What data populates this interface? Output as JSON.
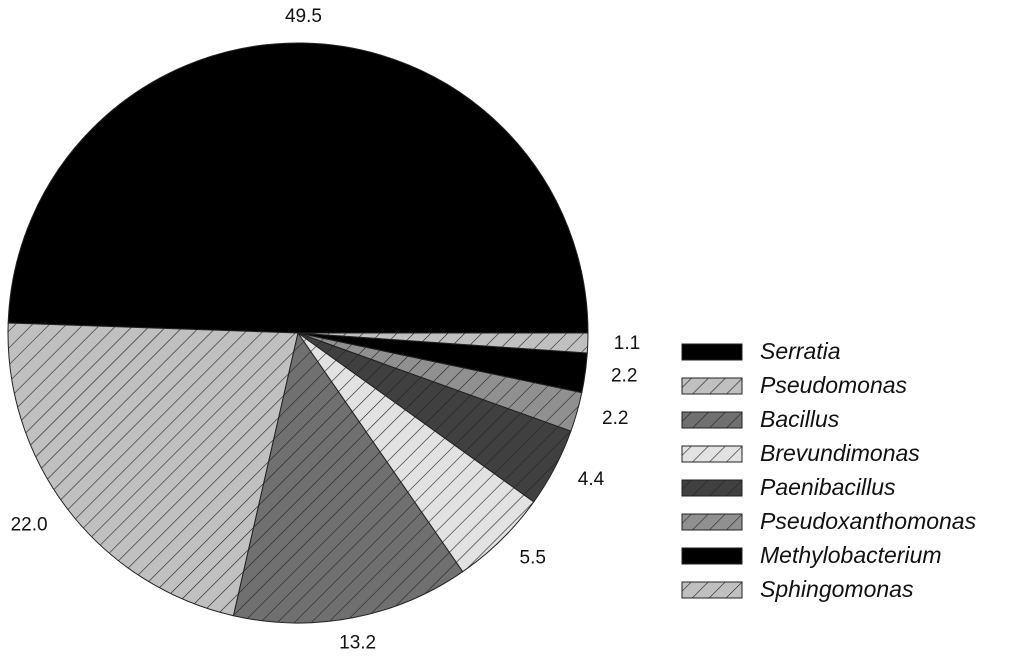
{
  "chart_data": {
    "type": "pie",
    "categories": [
      "Serratia",
      "Pseudomonas",
      "Bacillus",
      "Brevundimonas",
      "Paenibacillus",
      "Pseudoxanthomonas",
      "Methylobacterium",
      "Sphingomonas"
    ],
    "values": [
      49.5,
      22.0,
      13.2,
      5.5,
      4.4,
      2.2,
      2.2,
      1.1
    ],
    "value_labels": [
      "49.5",
      "22.0",
      "13.2",
      "5.5",
      "4.4",
      "2.2",
      "2.2",
      "1.1"
    ],
    "colors": [
      "#000000",
      "#c0c0c0",
      "#707070",
      "#e2e2e2",
      "#404040",
      "#909090",
      "#000000",
      "#c0c0c0"
    ],
    "hatched": [
      false,
      true,
      true,
      true,
      true,
      true,
      false,
      true
    ],
    "legend": "right"
  }
}
